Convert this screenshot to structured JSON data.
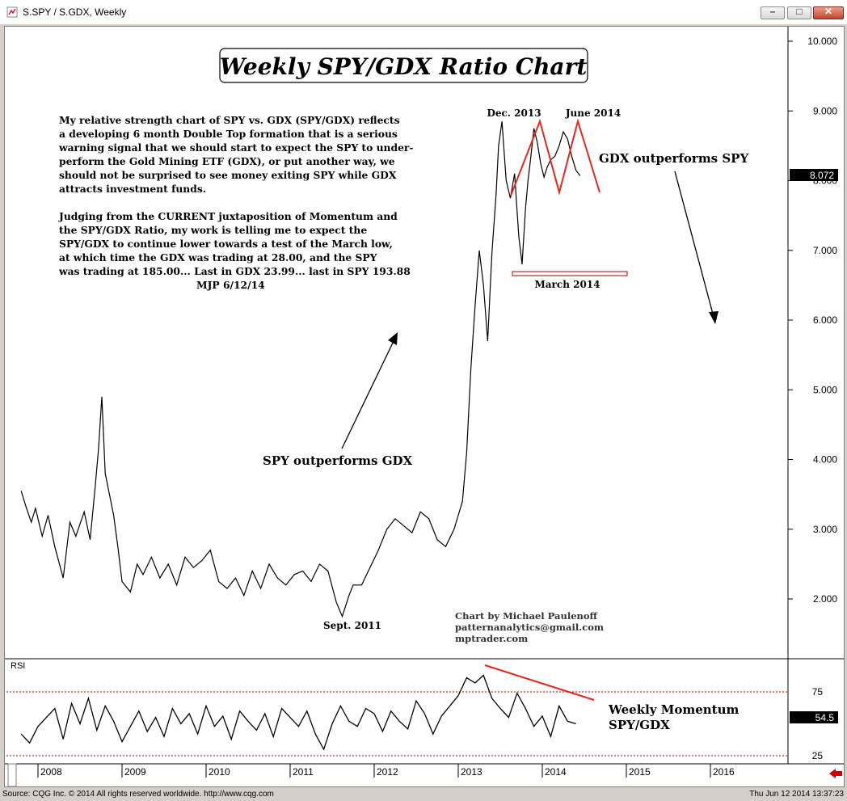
{
  "window": {
    "title": "S.SPY / S.GDX, Weekly"
  },
  "chart_data": [
    {
      "type": "line",
      "title": "Weekly SPY/GDX Ratio Chart",
      "ylim": [
        1.2,
        10.4
      ],
      "yticks": [
        "10.000",
        "9.000",
        "8.000",
        "7.000",
        "6.000",
        "5.000",
        "4.000",
        "3.000",
        "2.000"
      ],
      "last_value": "8.072",
      "x": [
        "2007.80",
        "2007.85",
        "2007.92",
        "2007.97",
        "2008.05",
        "2008.12",
        "2008.20",
        "2008.30",
        "2008.38",
        "2008.45",
        "2008.55",
        "2008.62",
        "2008.68",
        "2008.72",
        "2008.76",
        "2008.80",
        "2008.85",
        "2008.90",
        "2008.95",
        "2009.00",
        "2009.10",
        "2009.18",
        "2009.25",
        "2009.35",
        "2009.45",
        "2009.55",
        "2009.65",
        "2009.75",
        "2009.85",
        "2009.95",
        "2010.05",
        "2010.15",
        "2010.25",
        "2010.35",
        "2010.45",
        "2010.55",
        "2010.65",
        "2010.75",
        "2010.85",
        "2010.95",
        "2011.05",
        "2011.15",
        "2011.25",
        "2011.35",
        "2011.45",
        "2011.55",
        "2011.62",
        "2011.70",
        "2011.75",
        "2011.85",
        "2011.95",
        "2012.05",
        "2012.15",
        "2012.25",
        "2012.35",
        "2012.45",
        "2012.55",
        "2012.65",
        "2012.75",
        "2012.85",
        "2012.95",
        "2013.00",
        "2013.05",
        "2013.10",
        "2013.15",
        "2013.20",
        "2013.25",
        "2013.30",
        "2013.35",
        "2013.40",
        "2013.45",
        "2013.48",
        "2013.52",
        "2013.57",
        "2013.62",
        "2013.67",
        "2013.72",
        "2013.76",
        "2013.80",
        "2013.83",
        "2013.86",
        "2013.90",
        "2013.94",
        "2013.98",
        "2014.02",
        "2014.06",
        "2014.10",
        "2014.15",
        "2014.20",
        "2014.25",
        "2014.30",
        "2014.35",
        "2014.40",
        "2014.45"
      ],
      "values": [
        3.55,
        3.35,
        3.1,
        3.3,
        2.9,
        3.2,
        2.75,
        2.3,
        3.1,
        2.9,
        3.25,
        2.85,
        3.6,
        4.15,
        4.9,
        3.8,
        3.5,
        3.2,
        2.75,
        2.25,
        2.1,
        2.5,
        2.35,
        2.6,
        2.3,
        2.5,
        2.2,
        2.6,
        2.45,
        2.55,
        2.7,
        2.25,
        2.15,
        2.3,
        2.05,
        2.4,
        2.15,
        2.5,
        2.3,
        2.2,
        2.35,
        2.4,
        2.25,
        2.5,
        2.4,
        1.95,
        1.75,
        2.05,
        2.2,
        2.2,
        2.45,
        2.7,
        3.0,
        3.15,
        3.05,
        2.95,
        3.25,
        3.15,
        2.85,
        2.75,
        3.0,
        3.2,
        3.4,
        4.1,
        5.3,
        6.2,
        7.0,
        6.5,
        5.7,
        6.95,
        7.8,
        8.5,
        8.85,
        8.0,
        7.75,
        8.1,
        7.2,
        6.8,
        7.6,
        8.0,
        8.3,
        8.75,
        8.55,
        8.25,
        8.05,
        8.2,
        8.3,
        8.35,
        8.5,
        8.7,
        8.6,
        8.35,
        8.15,
        8.07
      ]
    },
    {
      "type": "line",
      "title": "RSI",
      "ylim": [
        20,
        100
      ],
      "yticks": [
        "75",
        "25"
      ],
      "last_value": "54.5",
      "x": [
        "2007.80",
        "2007.90",
        "2008.00",
        "2008.10",
        "2008.20",
        "2008.30",
        "2008.40",
        "2008.50",
        "2008.60",
        "2008.70",
        "2008.80",
        "2008.90",
        "2009.00",
        "2009.10",
        "2009.20",
        "2009.30",
        "2009.40",
        "2009.50",
        "2009.60",
        "2009.70",
        "2009.80",
        "2009.90",
        "2010.00",
        "2010.10",
        "2010.20",
        "2010.30",
        "2010.40",
        "2010.50",
        "2010.60",
        "2010.70",
        "2010.80",
        "2010.90",
        "2011.00",
        "2011.10",
        "2011.20",
        "2011.30",
        "2011.40",
        "2011.50",
        "2011.60",
        "2011.70",
        "2011.80",
        "2011.90",
        "2012.00",
        "2012.10",
        "2012.20",
        "2012.30",
        "2012.40",
        "2012.50",
        "2012.60",
        "2012.70",
        "2012.80",
        "2012.90",
        "2013.00",
        "2013.10",
        "2013.20",
        "2013.30",
        "2013.40",
        "2013.50",
        "2013.60",
        "2013.70",
        "2013.80",
        "2013.90",
        "2014.00",
        "2014.10",
        "2014.20",
        "2014.30",
        "2014.40"
      ],
      "values": [
        42,
        35,
        48,
        55,
        62,
        38,
        66,
        50,
        70,
        45,
        64,
        52,
        36,
        48,
        60,
        44,
        55,
        40,
        62,
        50,
        58,
        42,
        64,
        48,
        56,
        38,
        60,
        52,
        45,
        58,
        40,
        62,
        55,
        48,
        60,
        42,
        30,
        50,
        64,
        52,
        48,
        62,
        58,
        44,
        60,
        52,
        46,
        68,
        58,
        42,
        56,
        64,
        72,
        86,
        82,
        88,
        70,
        62,
        55,
        74,
        62,
        48,
        56,
        40,
        64,
        52,
        50
      ]
    }
  ],
  "annotations": {
    "commentary": [
      "My relative strength chart of SPY vs. GDX (SPY/GDX) reflects",
      "a developing 6 month Double Top formation that is a serious",
      "warning signal that we should start to expect the SPY to under-",
      "perform the Gold Mining ETF (GDX), or put another way, we",
      "should not be surprised to see money exiting SPY while GDX",
      "attracts investment funds.",
      "",
      "Judging from the CURRENT juxtaposition of Momentum and",
      "the SPY/GDX Ratio, my work is telling me to expect the",
      "SPY/GDX to continue lower towards a test of the March low,",
      "at which time the GDX was trading at 28.00, and the SPY",
      "was trading at 185.00... Last in GDX 23.99... last in SPY 193.88",
      "MJP  6/12/14"
    ],
    "dec2013": "Dec. 2013",
    "june2014": "June 2014",
    "march2014": "March 2014",
    "sept2011": "Sept. 2011",
    "gdx_outperforms": "GDX outperforms SPY",
    "spy_outperforms": "SPY outperforms GDX",
    "credit": [
      "Chart by Michael Paulenoff",
      "patternanalytics@gmail.com",
      "mptrader.com"
    ],
    "momentum": [
      "Weekly Momentum",
      "SPY/GDX"
    ]
  },
  "x_axis": [
    "2008",
    "2009",
    "2010",
    "2011",
    "2012",
    "2013",
    "2014",
    "2015",
    "2016"
  ],
  "footer": {
    "source": "Source: CQG Inc. © 2014 All rights reserved worldwide. http://www.cqg.com",
    "datetime": "Thu Jun 12 2014 13:37:23"
  },
  "colors": {
    "line": "#000000",
    "pattern": "#e8261c",
    "rsi_band": "#c00000",
    "arrow": "#cc0000"
  }
}
